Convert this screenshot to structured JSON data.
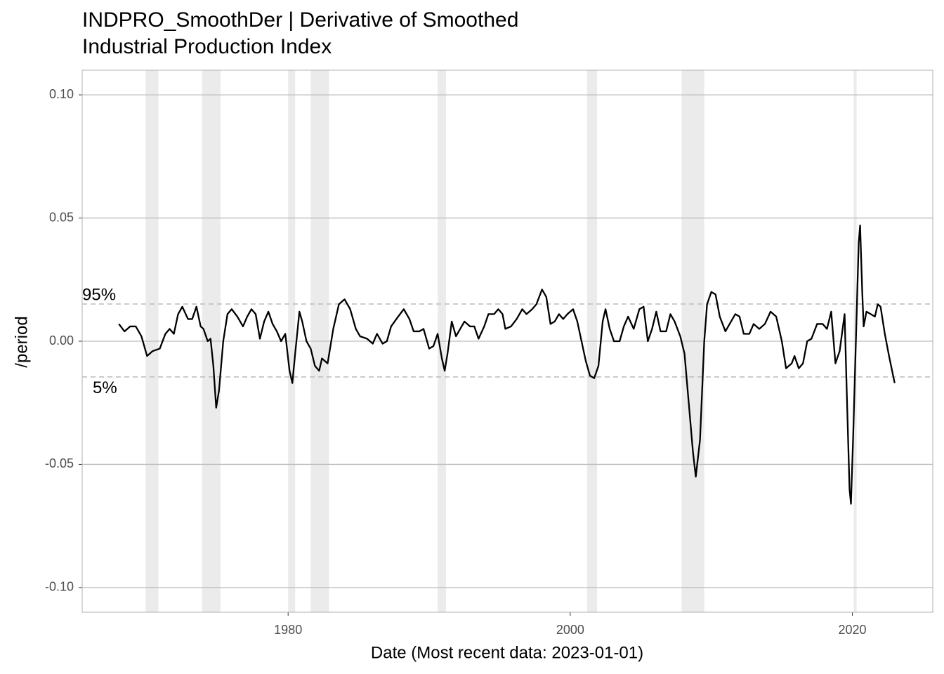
{
  "chart_data": {
    "type": "line",
    "title": [
      "INDPRO_SmoothDer | Derivative of Smoothed",
      "Industrial Production Index"
    ],
    "x_label": "Date (Most recent data: 2023-01-01)",
    "y_label": "/period",
    "color": "#000000",
    "grid": true,
    "xlim": [
      1965.4,
      2025.7
    ],
    "ylim": [
      -0.11,
      0.11
    ],
    "xticks": [
      1980,
      2000,
      2020
    ],
    "yticks": [
      {
        "value": 0.1,
        "label": "0.10"
      },
      0.05,
      {
        "value": 0,
        "label": "0.00"
      },
      -0.05,
      {
        "value": -0.1,
        "label": "-0.10"
      }
    ],
    "shaded_ranges": [
      [
        1969.9,
        1970.8
      ],
      [
        1973.9,
        1975.2
      ],
      [
        1980.0,
        1980.5
      ],
      [
        1981.6,
        1982.9
      ],
      [
        1990.6,
        1991.2
      ],
      [
        2001.2,
        2001.9
      ],
      [
        2007.9,
        2009.5
      ],
      [
        2020.1,
        2020.3
      ]
    ],
    "reference_lines": [
      {
        "label": "95%",
        "value": 0.0151
      },
      {
        "label": "5%",
        "value": -0.0145
      }
    ],
    "x": [
      1968.0,
      1968.4,
      1968.8,
      1969.2,
      1969.6,
      1970.0,
      1970.4,
      1970.9,
      1971.3,
      1971.6,
      1971.9,
      1972.2,
      1972.5,
      1972.9,
      1973.2,
      1973.5,
      1973.8,
      1974.0,
      1974.3,
      1974.5,
      1974.7,
      1974.9,
      1975.1,
      1975.4,
      1975.7,
      1976.0,
      1976.4,
      1976.8,
      1977.1,
      1977.4,
      1977.7,
      1978.0,
      1978.3,
      1978.6,
      1978.9,
      1979.2,
      1979.5,
      1979.8,
      1980.1,
      1980.3,
      1980.5,
      1980.8,
      1981.0,
      1981.3,
      1981.6,
      1981.9,
      1982.2,
      1982.4,
      1982.8,
      1983.2,
      1983.6,
      1984.0,
      1984.4,
      1984.8,
      1985.1,
      1985.6,
      1986.0,
      1986.3,
      1986.7,
      1987.0,
      1987.3,
      1987.8,
      1988.2,
      1988.6,
      1988.9,
      1989.3,
      1989.6,
      1990.0,
      1990.3,
      1990.6,
      1990.9,
      1991.1,
      1991.3,
      1991.6,
      1991.9,
      1992.2,
      1992.5,
      1992.9,
      1993.2,
      1993.5,
      1993.9,
      1994.2,
      1994.6,
      1994.9,
      1995.2,
      1995.4,
      1995.8,
      1996.2,
      1996.6,
      1996.9,
      1997.3,
      1997.6,
      1998.0,
      1998.3,
      1998.6,
      1998.9,
      1999.2,
      1999.5,
      1999.8,
      2000.2,
      2000.5,
      2000.8,
      2001.1,
      2001.4,
      2001.7,
      2002.0,
      2002.3,
      2002.5,
      2002.8,
      2003.1,
      2003.5,
      2003.8,
      2004.1,
      2004.5,
      2004.9,
      2005.2,
      2005.5,
      2005.8,
      2006.1,
      2006.4,
      2006.8,
      2007.1,
      2007.4,
      2007.8,
      2008.1,
      2008.4,
      2008.7,
      2008.9,
      2009.2,
      2009.5,
      2009.7,
      2010.0,
      2010.3,
      2010.6,
      2011.0,
      2011.3,
      2011.7,
      2012.0,
      2012.3,
      2012.7,
      2013.0,
      2013.4,
      2013.8,
      2014.2,
      2014.6,
      2015.0,
      2015.3,
      2015.7,
      2015.9,
      2016.2,
      2016.5,
      2016.8,
      2017.1,
      2017.5,
      2017.9,
      2018.2,
      2018.5,
      2018.8,
      2019.1,
      2019.45,
      2019.6,
      2019.8,
      2019.9,
      2020.05,
      2020.25,
      2020.45,
      2020.55,
      2020.7,
      2020.8,
      2021.0,
      2021.3,
      2021.6,
      2021.8,
      2022.0,
      2022.3,
      2022.6,
      2023.0
    ],
    "values": [
      0.007,
      0.004,
      0.006,
      0.006,
      0.002,
      -0.006,
      -0.004,
      -0.003,
      0.003,
      0.005,
      0.003,
      0.011,
      0.014,
      0.009,
      0.009,
      0.014,
      0.006,
      0.005,
      0.0,
      0.001,
      -0.01,
      -0.027,
      -0.02,
      0.0,
      0.011,
      0.013,
      0.01,
      0.006,
      0.01,
      0.013,
      0.011,
      0.001,
      0.008,
      0.012,
      0.007,
      0.004,
      0.0,
      0.003,
      -0.012,
      -0.017,
      -0.005,
      0.012,
      0.008,
      0.0,
      -0.003,
      -0.01,
      -0.012,
      -0.007,
      -0.009,
      0.005,
      0.015,
      0.017,
      0.013,
      0.005,
      0.002,
      0.001,
      -0.001,
      0.003,
      -0.001,
      0.0,
      0.006,
      0.01,
      0.013,
      0.009,
      0.004,
      0.004,
      0.005,
      -0.003,
      -0.002,
      0.003,
      -0.007,
      -0.012,
      -0.005,
      0.008,
      0.002,
      0.005,
      0.008,
      0.006,
      0.006,
      0.001,
      0.006,
      0.011,
      0.011,
      0.013,
      0.011,
      0.005,
      0.006,
      0.009,
      0.013,
      0.011,
      0.013,
      0.015,
      0.021,
      0.018,
      0.007,
      0.008,
      0.011,
      0.009,
      0.011,
      0.013,
      0.008,
      0.0,
      -0.008,
      -0.014,
      -0.015,
      -0.01,
      0.008,
      0.013,
      0.005,
      0.0,
      0.0,
      0.006,
      0.01,
      0.005,
      0.013,
      0.014,
      0.0,
      0.005,
      0.012,
      0.004,
      0.004,
      0.011,
      0.008,
      0.002,
      -0.005,
      -0.025,
      -0.045,
      -0.055,
      -0.04,
      0.0,
      0.015,
      0.02,
      0.019,
      0.01,
      0.004,
      0.007,
      0.011,
      0.01,
      0.003,
      0.003,
      0.007,
      0.005,
      0.007,
      0.012,
      0.01,
      0.0,
      -0.011,
      -0.009,
      -0.006,
      -0.011,
      -0.009,
      0.0,
      0.001,
      0.007,
      0.007,
      0.005,
      0.012,
      -0.009,
      -0.004,
      0.011,
      -0.02,
      -0.06,
      -0.066,
      -0.04,
      0.0,
      0.04,
      0.047,
      0.02,
      0.006,
      0.012,
      0.011,
      0.01,
      0.015,
      0.014,
      0.003,
      -0.006,
      -0.017
    ]
  }
}
